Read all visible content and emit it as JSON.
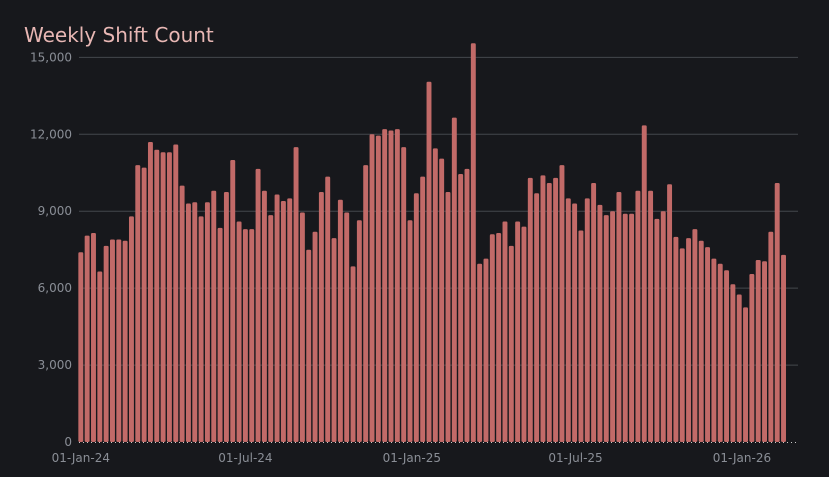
{
  "chart_data": {
    "type": "bar",
    "title": "Weekly Shift Count",
    "xlabel": "",
    "ylabel": "",
    "ylim": [
      0,
      15600
    ],
    "yticks": [
      {
        "value": 0,
        "label": "0"
      },
      {
        "value": 3000,
        "label": "3,000"
      },
      {
        "value": 6000,
        "label": "6,000"
      },
      {
        "value": 9000,
        "label": "9,000"
      },
      {
        "value": 12000,
        "label": "12,000"
      },
      {
        "value": 15000,
        "label": "15,000"
      }
    ],
    "xticks": [
      {
        "date": "2024-01-01",
        "label": "01-Jan-24"
      },
      {
        "date": "2024-07-01",
        "label": "01-Jul-24"
      },
      {
        "date": "2025-01-01",
        "label": "01-Jan-25"
      },
      {
        "date": "2025-07-01",
        "label": "01-Jul-25"
      },
      {
        "date": "2026-01-01",
        "label": "01-Jan-26"
      }
    ],
    "x_start": "2024-01-01",
    "x_range": [
      "2023-12-30",
      "2026-03-04"
    ],
    "grid": true,
    "bar_color": "#c26a68",
    "values": [
      7400,
      8050,
      8150,
      6650,
      7650,
      7900,
      7900,
      7850,
      8800,
      10800,
      10700,
      11700,
      11400,
      11300,
      11300,
      11600,
      10000,
      9300,
      9350,
      8800,
      9350,
      9800,
      8350,
      9750,
      11000,
      8600,
      8300,
      8300,
      10650,
      9800,
      8850,
      9650,
      9400,
      9500,
      11500,
      8950,
      7500,
      8200,
      9750,
      10350,
      7950,
      9450,
      8950,
      6850,
      8650,
      10800,
      12000,
      11950,
      12200,
      12150,
      12200,
      11500,
      8650,
      9700,
      10350,
      14050,
      11450,
      11050,
      9750,
      12650,
      10450,
      10650,
      15550,
      6950,
      7150,
      8100,
      8150,
      8600,
      7650,
      8600,
      8400,
      10300,
      9700,
      10400,
      10100,
      10300,
      10800,
      9500,
      9300,
      8250,
      9500,
      10100,
      9250,
      8850,
      9000,
      9750,
      8900,
      8900,
      9800,
      12350,
      9800,
      8700,
      9000,
      10050,
      8000,
      7550,
      7950,
      8300,
      7850,
      7600,
      7150,
      6950,
      6700,
      6150,
      5750,
      5250,
      6550,
      7100,
      7050,
      8200,
      10100,
      7300
    ]
  }
}
